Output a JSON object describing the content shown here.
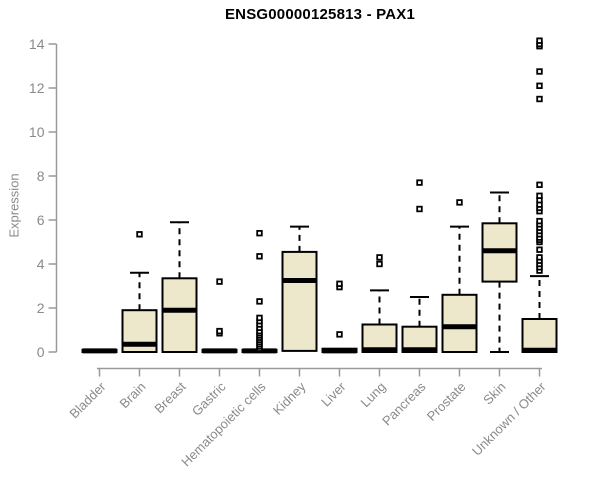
{
  "title": "ENSG00000125813 - PAX1",
  "colors": {
    "box_fill": "#EDE7CB",
    "box_border": "#000000",
    "median": "#000000",
    "whisker": "#000000",
    "outlier_stroke": "#000000",
    "outlier_fill": "#ffffff",
    "axis": "#999999",
    "tick_label": "#8a8a8a",
    "title_color": "#000000"
  },
  "chart_data": {
    "type": "boxplot",
    "title": "ENSG00000125813 - PAX1",
    "xlabel": "",
    "ylabel": "Expression",
    "ylim": [
      0,
      14
    ],
    "yticks": [
      0,
      2,
      4,
      6,
      8,
      10,
      12,
      14
    ],
    "grid": false,
    "legend": "none",
    "categories": [
      "Bladder",
      "Brain",
      "Breast",
      "Gastric",
      "Hematopoietic cells",
      "Kidney",
      "Liver",
      "Lung",
      "Pancreas",
      "Prostate",
      "Skin",
      "Unknown / Other"
    ],
    "series": [
      {
        "category": "Bladder",
        "low": 0,
        "q1": 0,
        "median": 0.05,
        "q3": 0.1,
        "high": 0.1,
        "outliers": []
      },
      {
        "category": "Brain",
        "low": 0,
        "q1": 0,
        "median": 0.35,
        "q3": 1.9,
        "high": 3.6,
        "outliers": [
          5.35
        ]
      },
      {
        "category": "Breast",
        "low": 0,
        "q1": 0,
        "median": 1.9,
        "q3": 3.35,
        "high": 5.9,
        "outliers": []
      },
      {
        "category": "Gastric",
        "low": 0,
        "q1": 0,
        "median": 0.05,
        "q3": 0.1,
        "high": 0.1,
        "outliers": [
          0.85,
          0.95,
          3.2
        ]
      },
      {
        "category": "Hematopoietic cells",
        "low": 0,
        "q1": 0,
        "median": 0.05,
        "q3": 0.1,
        "high": 0.1,
        "outliers": [
          0.15,
          0.25,
          0.35,
          0.45,
          0.55,
          0.65,
          0.75,
          0.85,
          0.95,
          1.1,
          1.25,
          1.4,
          1.55,
          2.3,
          4.35,
          5.4
        ]
      },
      {
        "category": "Kidney",
        "low": 0.05,
        "q1": 0.05,
        "median": 3.25,
        "q3": 4.55,
        "high": 5.7,
        "outliers": []
      },
      {
        "category": "Liver",
        "low": 0,
        "q1": 0,
        "median": 0.05,
        "q3": 0.15,
        "high": 0.15,
        "outliers": [
          0.8,
          2.95,
          3.1
        ]
      },
      {
        "category": "Lung",
        "low": 0,
        "q1": 0,
        "median": 0.1,
        "q3": 1.25,
        "high": 2.8,
        "outliers": [
          4.0,
          4.3
        ]
      },
      {
        "category": "Pancreas",
        "low": 0,
        "q1": 0,
        "median": 0.1,
        "q3": 1.15,
        "high": 2.5,
        "outliers": [
          6.5,
          7.7
        ]
      },
      {
        "category": "Prostate",
        "low": 0,
        "q1": 0,
        "median": 1.15,
        "q3": 2.6,
        "high": 5.7,
        "outliers": [
          6.8
        ]
      },
      {
        "category": "Skin",
        "low": 0,
        "q1": 3.2,
        "median": 4.6,
        "q3": 5.85,
        "high": 7.25,
        "outliers": []
      },
      {
        "category": "Unknown / Other",
        "low": 0,
        "q1": 0,
        "median": 0.08,
        "q3": 1.5,
        "high": 3.45,
        "outliers": [
          3.7,
          3.85,
          4.0,
          4.15,
          4.3,
          4.65,
          5.0,
          5.1,
          5.2,
          5.35,
          5.5,
          5.65,
          5.8,
          5.95,
          6.4,
          6.55,
          6.7,
          6.9,
          7.1,
          7.6,
          11.5,
          12.1,
          12.75,
          13.9,
          14.0,
          14.15
        ]
      }
    ]
  }
}
